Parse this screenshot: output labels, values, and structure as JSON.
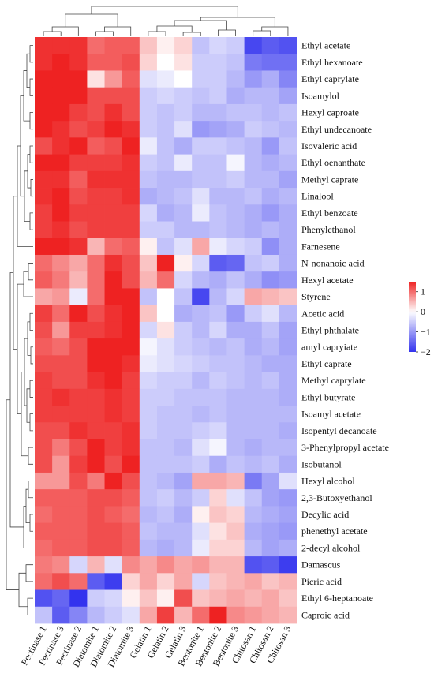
{
  "chart_data": {
    "type": "heatmap",
    "title": "",
    "xlabel": "",
    "ylabel": "",
    "columns": [
      "Pectinase 1",
      "Pectinase 3",
      "Pectinase 2",
      "Diatomite 1",
      "Diatomite 2",
      "Diatomite 3",
      "Gelatin 1",
      "Gelatin 2",
      "Gelatin 3",
      "Bentonite 1",
      "Bentonite 2",
      "Bentonite 3",
      "Chitosan 1",
      "Chitosan 2",
      "Chitosan 3"
    ],
    "rows": [
      "Ethyl acetate",
      "Ethyl hexanoate",
      "Ethyl caprylate",
      "Isoamylol",
      "Hexyl caproate",
      "Ethyl undecanoate",
      "Isovaleric acid",
      "Ethyl oenanthate",
      "Methyl caprate",
      "Linalool",
      "Ethyl benzoate",
      "Phenylethanol",
      "Farnesene",
      "N-nonanoic acid",
      "Hexyl acetate",
      "Styrene",
      "Acetic acid",
      "Ethyl phthalate",
      "amyl capryiate",
      "Ethyl caprate",
      "Methyl caprylate",
      "Ethyl butyrate",
      "Isoamyl acetate",
      "Isopentyl decanoate",
      "3-Phenylpropyl acetate",
      "Isobutanol",
      "Hexyl alcohol",
      "2,3-Butoxyethanol",
      "Decylic acid",
      "phenethyl acetate",
      "2-decyl alcohol",
      "Damascus",
      "Picric acid",
      "Ethyl 6-heptanoate",
      "Caproic acid"
    ],
    "values": [
      [
        1.4,
        1.4,
        1.4,
        1.0,
        1.1,
        1.1,
        0.4,
        0.1,
        0.3,
        -0.6,
        -0.4,
        -0.5,
        -1.8,
        -1.6,
        -1.7
      ],
      [
        1.4,
        1.5,
        1.4,
        1.1,
        1.1,
        1.2,
        0.3,
        0.0,
        0.2,
        -0.5,
        -0.5,
        -0.6,
        -1.3,
        -1.4,
        -1.4
      ],
      [
        1.7,
        1.8,
        1.5,
        0.2,
        0.7,
        1.1,
        -0.3,
        -0.2,
        0.0,
        -0.5,
        -0.5,
        -0.7,
        -1.0,
        -0.8,
        -1.2
      ],
      [
        1.6,
        1.6,
        1.5,
        1.2,
        1.2,
        1.2,
        -0.5,
        -0.4,
        -0.5,
        -0.6,
        -0.5,
        -0.8,
        -0.7,
        -0.7,
        -0.9
      ],
      [
        1.5,
        1.5,
        1.3,
        1.2,
        1.4,
        1.2,
        -0.5,
        -0.6,
        -0.5,
        -0.7,
        -0.7,
        -0.6,
        -0.6,
        -0.7,
        -0.6
      ],
      [
        1.5,
        1.4,
        1.2,
        1.3,
        1.5,
        1.4,
        -0.5,
        -0.6,
        -0.3,
        -1.0,
        -0.9,
        -0.8,
        -0.5,
        -0.6,
        -0.7
      ],
      [
        1.2,
        1.4,
        1.8,
        1.1,
        1.2,
        1.6,
        -0.2,
        -0.6,
        -0.8,
        -0.5,
        -0.5,
        -0.6,
        -0.7,
        -1.0,
        -0.6
      ],
      [
        1.5,
        1.5,
        1.3,
        1.3,
        1.3,
        1.4,
        -0.5,
        -0.6,
        -0.2,
        -0.6,
        -0.6,
        -0.1,
        -0.7,
        -0.8,
        -0.7
      ],
      [
        1.4,
        1.4,
        1.1,
        1.4,
        1.4,
        1.4,
        -0.6,
        -0.7,
        -0.7,
        -0.6,
        -0.6,
        -0.5,
        -0.7,
        -0.7,
        -0.9
      ],
      [
        1.4,
        1.5,
        1.2,
        1.3,
        1.3,
        1.4,
        -0.8,
        -0.7,
        -0.6,
        -0.3,
        -0.7,
        -0.7,
        -0.6,
        -0.8,
        -0.7
      ],
      [
        1.3,
        1.5,
        1.3,
        1.3,
        1.3,
        1.3,
        -0.4,
        -0.8,
        -0.7,
        -0.2,
        -0.6,
        -0.7,
        -0.8,
        -1.0,
        -0.8
      ],
      [
        1.3,
        1.4,
        1.2,
        1.3,
        1.3,
        1.3,
        -0.5,
        -0.5,
        -0.7,
        -0.7,
        -0.6,
        -0.7,
        -0.8,
        -0.7,
        -0.8
      ],
      [
        1.8,
        1.5,
        1.4,
        0.5,
        1.0,
        1.1,
        0.1,
        -0.6,
        -0.3,
        0.6,
        -0.2,
        -0.4,
        -0.5,
        -1.1,
        -0.8
      ],
      [
        1.0,
        0.8,
        0.6,
        1.0,
        1.4,
        1.2,
        0.4,
        1.6,
        0.1,
        -0.4,
        -1.6,
        -1.5,
        -0.6,
        -0.5,
        -0.8
      ],
      [
        1.1,
        0.9,
        0.5,
        1.0,
        1.7,
        1.2,
        0.5,
        1.0,
        -0.4,
        -0.7,
        -0.8,
        -0.6,
        -0.8,
        -1.1,
        -1.0
      ],
      [
        0.6,
        0.7,
        -0.2,
        1.0,
        2.0,
        1.9,
        -0.6,
        0.0,
        -0.6,
        -1.8,
        -0.7,
        -0.4,
        0.6,
        0.5,
        0.4
      ],
      [
        1.3,
        1.0,
        1.5,
        1.2,
        1.4,
        1.6,
        0.4,
        0.0,
        -0.8,
        -0.7,
        -0.6,
        -1.0,
        -0.5,
        -0.3,
        -0.7
      ],
      [
        1.2,
        0.7,
        1.3,
        1.3,
        1.4,
        1.5,
        -0.4,
        0.2,
        -0.5,
        -0.7,
        -0.4,
        -0.8,
        -0.8,
        -0.6,
        -0.9
      ],
      [
        1.1,
        1.0,
        1.2,
        1.6,
        1.5,
        1.5,
        -0.1,
        -0.3,
        -0.5,
        -0.6,
        -0.7,
        -0.6,
        -0.8,
        -0.7,
        -0.9
      ],
      [
        1.2,
        1.2,
        1.2,
        1.5,
        1.6,
        1.4,
        -0.2,
        -0.3,
        -0.4,
        -0.5,
        -0.6,
        -0.6,
        -0.7,
        -0.8,
        -0.8
      ],
      [
        1.3,
        1.2,
        1.2,
        1.4,
        1.6,
        1.3,
        -0.4,
        -0.5,
        -0.5,
        -0.7,
        -0.5,
        -0.6,
        -0.7,
        -0.6,
        -0.8
      ],
      [
        1.3,
        1.4,
        1.3,
        1.3,
        1.4,
        1.3,
        -0.5,
        -0.5,
        -0.6,
        -0.6,
        -0.6,
        -0.7,
        -0.7,
        -0.7,
        -0.8
      ],
      [
        1.3,
        1.3,
        1.3,
        1.3,
        1.4,
        1.3,
        -0.5,
        -0.6,
        -0.6,
        -0.7,
        -0.6,
        -0.7,
        -0.7,
        -0.7,
        -0.7
      ],
      [
        1.2,
        1.2,
        1.4,
        1.3,
        1.3,
        1.4,
        -0.5,
        -0.6,
        -0.6,
        -0.5,
        -0.4,
        -0.7,
        -0.7,
        -0.7,
        -0.8
      ],
      [
        1.2,
        0.9,
        1.2,
        1.5,
        1.3,
        1.4,
        -0.6,
        -0.6,
        -0.7,
        -0.3,
        -0.1,
        -0.7,
        -0.8,
        -0.7,
        -0.7
      ],
      [
        1.2,
        0.7,
        1.3,
        1.6,
        1.2,
        1.6,
        -0.6,
        -0.6,
        -0.6,
        -0.5,
        -0.8,
        -0.6,
        -0.7,
        -0.6,
        -0.8
      ],
      [
        0.7,
        0.7,
        1.2,
        0.9,
        1.5,
        1.2,
        -0.6,
        -0.7,
        -0.9,
        0.6,
        0.6,
        0.5,
        -1.3,
        -0.9,
        -0.3
      ],
      [
        1.1,
        1.1,
        1.1,
        1.2,
        1.2,
        1.1,
        -0.6,
        -0.5,
        -0.7,
        -0.5,
        0.3,
        -0.3,
        -0.6,
        -0.9,
        -1.0
      ],
      [
        1.0,
        1.1,
        1.1,
        1.2,
        1.1,
        1.0,
        -0.7,
        -0.6,
        -0.8,
        0.1,
        0.4,
        0.3,
        -0.7,
        -0.8,
        -0.9
      ],
      [
        1.1,
        1.1,
        1.1,
        1.2,
        1.2,
        1.1,
        -0.6,
        -0.7,
        -0.7,
        -0.3,
        0.2,
        0.4,
        -0.8,
        -0.9,
        -1.0
      ],
      [
        1.0,
        1.1,
        1.1,
        1.2,
        1.2,
        1.1,
        -0.7,
        -0.8,
        -0.7,
        -0.2,
        0.3,
        0.3,
        -0.7,
        -0.9,
        -0.8
      ],
      [
        0.9,
        0.8,
        -0.4,
        0.5,
        -0.3,
        0.8,
        0.6,
        0.8,
        0.6,
        0.7,
        0.5,
        0.5,
        -1.7,
        -1.6,
        -1.9
      ],
      [
        1.0,
        1.2,
        1.0,
        -1.6,
        -1.9,
        0.3,
        0.6,
        0.3,
        0.6,
        -0.4,
        0.4,
        0.5,
        0.6,
        0.4,
        0.5
      ],
      [
        -1.7,
        -1.5,
        -2.1,
        -0.5,
        -0.4,
        0.1,
        0.4,
        0.1,
        1.2,
        0.4,
        0.5,
        0.6,
        0.5,
        0.6,
        0.4
      ],
      [
        -0.6,
        -1.6,
        -1.2,
        -0.7,
        -0.5,
        -0.3,
        0.6,
        1.3,
        0.5,
        1.0,
        1.5,
        0.8,
        0.7,
        0.6,
        0.5
      ]
    ],
    "colorscale": {
      "low": "#3333ee",
      "mid": "#ffffff",
      "high": "#ee2222",
      "range": [
        -2,
        1.5
      ]
    },
    "legend": {
      "position": "right",
      "ticks": [
        "1",
        "0",
        "−1",
        "−2"
      ],
      "tick_values": [
        1,
        0,
        -1,
        -2
      ]
    },
    "row_dendrogram": "left",
    "column_dendrogram": "top"
  }
}
